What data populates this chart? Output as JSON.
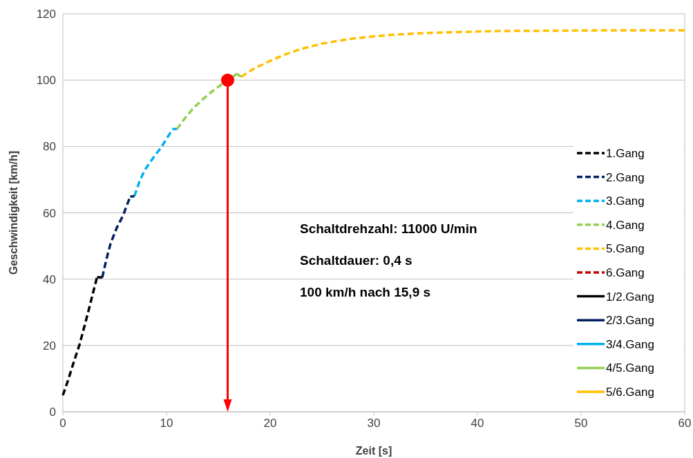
{
  "chart_data": {
    "type": "line",
    "xlabel": "Zeit [s]",
    "ylabel": "Geschwindigkeit [km/h]",
    "xlim": [
      0,
      60
    ],
    "xticks": [
      0,
      10,
      20,
      30,
      40,
      50,
      60
    ],
    "ylim": [
      0,
      120
    ],
    "yticks": [
      0,
      20,
      40,
      60,
      80,
      100,
      120
    ],
    "grid": "y",
    "legend": "right",
    "series": [
      {
        "name": "1.Gang",
        "color": "#000000",
        "line_style": "dashed",
        "x": [
          0,
          0.5,
          1,
          1.6,
          2.1,
          2.6,
          3.0,
          3.3
        ],
        "values": [
          5,
          9.5,
          14.5,
          20.2,
          26,
          32,
          37,
          40.6
        ]
      },
      {
        "name": "2.Gang",
        "color": "#002060",
        "line_style": "dashed",
        "x": [
          3.8,
          4.2,
          4.6,
          5.2,
          5.8,
          6.2,
          6.5
        ],
        "values": [
          40.5,
          46,
          50.7,
          55.5,
          59.1,
          62.5,
          64.9
        ]
      },
      {
        "name": "3.Gang",
        "color": "#00b0f0",
        "line_style": "dashed",
        "x": [
          6.9,
          7.4,
          7.9,
          8.7,
          9.5,
          10.1,
          10.6
        ],
        "values": [
          65,
          69.5,
          72.9,
          76.5,
          79.8,
          82.8,
          85.3
        ]
      },
      {
        "name": "4.Gang",
        "color": "#92d050",
        "line_style": "dashed",
        "x": [
          11.0,
          11.8,
          12.6,
          13.6,
          14.6,
          15.9,
          16.8
        ],
        "values": [
          85.2,
          88.6,
          91.6,
          94.5,
          97.1,
          100,
          101.9
        ]
      },
      {
        "name": "5.Gang",
        "color": "#ffc000",
        "line_style": "dashed",
        "x": [
          17.2,
          18.5,
          20,
          21.5,
          23,
          25,
          27.6,
          30,
          32,
          35,
          38.1,
          42,
          47.2,
          52,
          56,
          60
        ],
        "values": [
          101,
          103.6,
          105.8,
          107.8,
          109.4,
          111,
          112.4,
          113.2,
          113.7,
          114.2,
          114.5,
          114.8,
          114.9,
          115,
          115,
          115
        ]
      },
      {
        "name": "6.Gang",
        "color": "#c00000",
        "line_style": "dashed"
      },
      {
        "name": "1/2.Gang",
        "color": "#000000",
        "line_style": "solid",
        "x": [
          3.3,
          3.8
        ],
        "values": [
          40.6,
          40.5
        ]
      },
      {
        "name": "2/3.Gang",
        "color": "#002060",
        "line_style": "solid",
        "x": [
          6.5,
          6.9
        ],
        "values": [
          64.9,
          65
        ]
      },
      {
        "name": "3/4.Gang",
        "color": "#00b0f0",
        "line_style": "solid",
        "x": [
          10.6,
          11.0
        ],
        "values": [
          85.3,
          85.2
        ]
      },
      {
        "name": "4/5.Gang",
        "color": "#92d050",
        "line_style": "solid",
        "x": [
          16.8,
          17.2
        ],
        "values": [
          101.9,
          101
        ]
      },
      {
        "name": "5/6.Gang",
        "color": "#ffc000",
        "line_style": "solid"
      },
      {
        "type": "scatter",
        "color": "#ff0000",
        "marker": "circle",
        "x": [
          15.9
        ],
        "values": [
          100
        ]
      }
    ],
    "ref_lines": [
      {
        "axis": "x",
        "value": 15.9,
        "color": "#ff0000"
      }
    ],
    "annotations": [
      "Schaltdrehzahl: 11000 U/min",
      "Schaltdauer: 0,4 s",
      "100 km/h nach 15,9 s"
    ]
  }
}
